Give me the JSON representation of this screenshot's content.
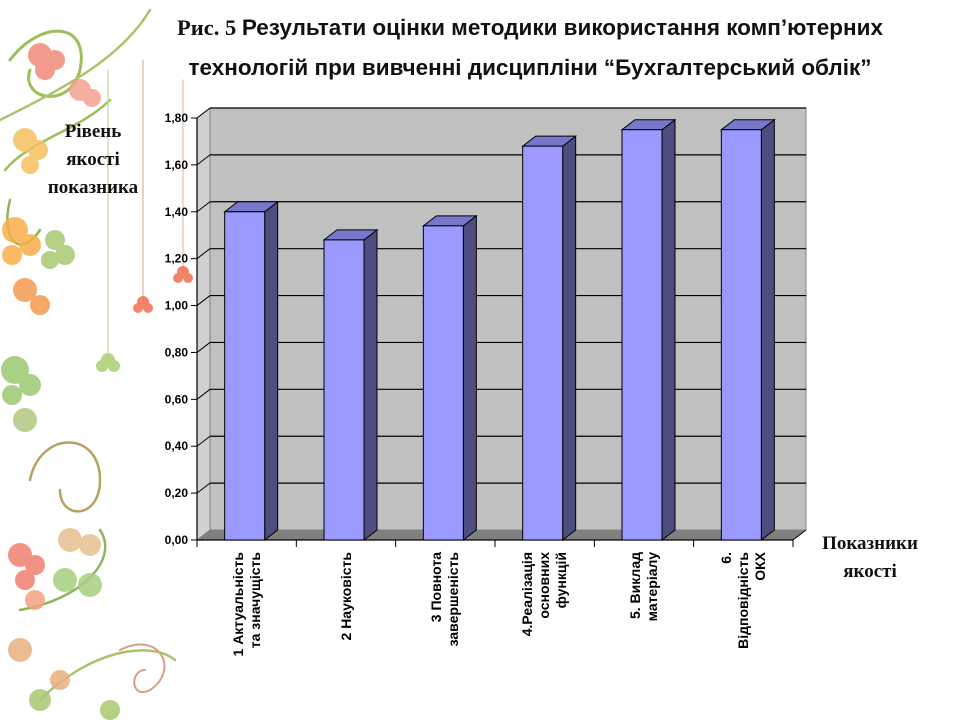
{
  "title": {
    "lead": "Рис. 5 ",
    "line1": "Результати оцінки методики  використання комп’ютерних",
    "line2": "технологій при вивченні дисципліни “Бухгалтерський облік”"
  },
  "axes": {
    "ylabel_lines": [
      "Рівень",
      "якості",
      "показника"
    ],
    "xlabel_lines": [
      "Показники",
      "якості"
    ]
  },
  "colors": {
    "bar_front": "#9999FF",
    "bar_top": "#7777CC",
    "bar_side": "#4D4D80",
    "wall": "#C0C0C0",
    "floor": "#808080",
    "gridline": "#000000"
  },
  "chart_data": {
    "type": "bar",
    "style": "3d-column",
    "title": "Рис. 5 Результати оцінки методики використання комп’ютерних технологій при вивченні дисципліни “Бухгалтерський облік”",
    "xlabel": "Показники якості",
    "ylabel": "Рівень якості показника",
    "categories": [
      "1 Актуальність та значущість",
      "2 Науковість",
      "3 Повнота завершеність",
      "4.Реалізація основних функцій",
      "5. Виклад матеріалу",
      "6. Відповідність ОКХ"
    ],
    "category_label_lines": [
      [
        "1 Актуальність",
        "та значущість"
      ],
      [
        "2 Науковість"
      ],
      [
        "3 Повнота",
        "завершеність"
      ],
      [
        "4.Реалізація",
        "основних",
        "функцій"
      ],
      [
        "5. Виклад",
        "матеріалу"
      ],
      [
        "6.",
        "Відповідність",
        "ОКХ"
      ]
    ],
    "values": [
      1.4,
      1.28,
      1.34,
      1.68,
      1.75,
      1.75
    ],
    "ylim": [
      0,
      1.8
    ],
    "yticks": [
      "0,00",
      "0,20",
      "0,40",
      "0,60",
      "0,80",
      "1,00",
      "1,20",
      "1,40",
      "1,60",
      "1,80"
    ],
    "grid": true,
    "legend": "none"
  }
}
